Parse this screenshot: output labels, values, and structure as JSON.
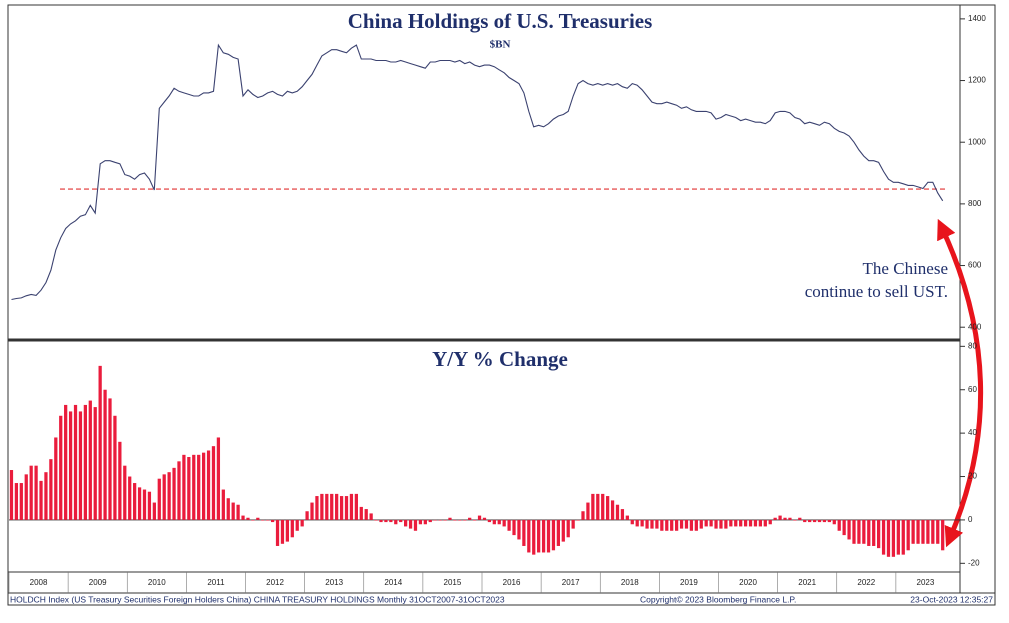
{
  "chart_data": [
    {
      "type": "line",
      "title": "China Holdings of U.S. Treasuries",
      "subtitle": "$BN",
      "annotation": [
        "The Chinese",
        "continue to sell UST."
      ],
      "color": "#3b4270",
      "values": [
        490,
        493,
        495,
        502,
        506,
        503,
        520,
        545,
        585,
        650,
        690,
        720,
        735,
        745,
        760,
        765,
        795,
        770,
        930,
        940,
        940,
        935,
        930,
        895,
        890,
        880,
        895,
        900,
        880,
        845,
        1110,
        1130,
        1150,
        1175,
        1165,
        1160,
        1155,
        1150,
        1150,
        1160,
        1160,
        1165,
        1315,
        1290,
        1285,
        1275,
        1270,
        1150,
        1170,
        1155,
        1145,
        1150,
        1160,
        1165,
        1155,
        1150,
        1165,
        1160,
        1165,
        1180,
        1200,
        1220,
        1250,
        1280,
        1290,
        1300,
        1300,
        1295,
        1290,
        1305,
        1315,
        1270,
        1270,
        1270,
        1265,
        1265,
        1265,
        1260,
        1260,
        1265,
        1260,
        1255,
        1250,
        1245,
        1240,
        1260,
        1260,
        1265,
        1265,
        1265,
        1260,
        1265,
        1255,
        1260,
        1250,
        1245,
        1250,
        1250,
        1245,
        1235,
        1225,
        1210,
        1200,
        1190,
        1160,
        1100,
        1050,
        1055,
        1050,
        1060,
        1075,
        1085,
        1090,
        1100,
        1150,
        1190,
        1200,
        1190,
        1185,
        1190,
        1185,
        1190,
        1185,
        1190,
        1180,
        1175,
        1190,
        1185,
        1170,
        1150,
        1130,
        1125,
        1125,
        1130,
        1125,
        1120,
        1110,
        1115,
        1105,
        1100,
        1100,
        1100,
        1095,
        1075,
        1080,
        1090,
        1085,
        1080,
        1070,
        1075,
        1070,
        1065,
        1065,
        1060,
        1070,
        1095,
        1100,
        1100,
        1095,
        1080,
        1075,
        1060,
        1065,
        1060,
        1055,
        1065,
        1060,
        1045,
        1035,
        1030,
        1020,
        1000,
        975,
        955,
        940,
        940,
        935,
        905,
        880,
        870,
        870,
        865,
        860,
        860,
        855,
        850,
        870,
        870,
        835,
        810
      ],
      "reference_line": {
        "value": 848,
        "color": "#e03030"
      },
      "ylim": [
        365,
        1445
      ],
      "yticks": [
        400,
        600,
        800,
        1000,
        1200,
        1400
      ]
    },
    {
      "type": "bar",
      "title": "Y/Y % Change",
      "color": "#ea1c3c",
      "categories": [
        null,
        null,
        null,
        null,
        null,
        "2008",
        null,
        null,
        null,
        null,
        null,
        null,
        null,
        null,
        null,
        null,
        null,
        "2009",
        null,
        null,
        null,
        null,
        null,
        null,
        null,
        null,
        null,
        null,
        null,
        "2010",
        null,
        null,
        null,
        null,
        null,
        null,
        null,
        null,
        null,
        null,
        null,
        "2011",
        null,
        null,
        null,
        null,
        null,
        null,
        null,
        null,
        null,
        null,
        null,
        "2012",
        null,
        null,
        null,
        null,
        null,
        null,
        null,
        null,
        null,
        null,
        null,
        "2013",
        null,
        null,
        null,
        null,
        null,
        null,
        null,
        null,
        null,
        null,
        null,
        "2014",
        null,
        null,
        null,
        null,
        null,
        null,
        null,
        null,
        null,
        null,
        null,
        "2015",
        null,
        null,
        null,
        null,
        null,
        null,
        null,
        null,
        null,
        null,
        null,
        "2016",
        null,
        null,
        null,
        null,
        null,
        null,
        null,
        null,
        null,
        null,
        null,
        "2017",
        null,
        null,
        null,
        null,
        null,
        null,
        null,
        null,
        null,
        null,
        null,
        "2018",
        null,
        null,
        null,
        null,
        null,
        null,
        null,
        null,
        null,
        null,
        null,
        "2019",
        null,
        null,
        null,
        null,
        null,
        null,
        null,
        null,
        null,
        null,
        null,
        "2020",
        null,
        null,
        null,
        null,
        null,
        null,
        null,
        null,
        null,
        null,
        null,
        "2021",
        null,
        null,
        null,
        null,
        null,
        null,
        null,
        null,
        null,
        null,
        null,
        "2022",
        null,
        null,
        null,
        null,
        null,
        null,
        null,
        null,
        null,
        null,
        null,
        "2023",
        null,
        null,
        null,
        null
      ],
      "values": [
        23,
        17,
        17,
        21,
        25,
        25,
        18,
        22,
        28,
        38,
        48,
        53,
        50,
        53,
        50,
        53,
        55,
        52,
        71,
        60,
        56,
        48,
        36,
        25,
        20,
        17,
        15,
        14,
        13,
        8,
        19,
        21,
        22,
        24,
        27,
        30,
        29,
        30,
        30,
        31,
        32,
        34,
        38,
        14,
        10,
        8,
        7,
        2,
        1,
        0,
        1,
        0,
        0,
        -1,
        -12,
        -11,
        -10,
        -8,
        -5,
        -3,
        4,
        8,
        11,
        12,
        12,
        12,
        12,
        11,
        11,
        12,
        12,
        6,
        5,
        3,
        0,
        -1,
        -1,
        -1,
        -2,
        -1,
        -3,
        -4,
        -5,
        -2,
        -2,
        -1,
        0,
        0,
        0,
        1,
        0,
        0,
        0,
        1,
        0,
        2,
        1,
        -1,
        -2,
        -2,
        -3,
        -5,
        -7,
        -9,
        -12,
        -15,
        -16,
        -15,
        -15,
        -15,
        -14,
        -12,
        -10,
        -8,
        -4,
        0,
        4,
        8,
        12,
        12,
        12,
        11,
        9,
        7,
        5,
        2,
        -2,
        -3,
        -3,
        -4,
        -4,
        -4,
        -5,
        -5,
        -5,
        -5,
        -4,
        -4,
        -5,
        -5,
        -4,
        -3,
        -3,
        -4,
        -4,
        -4,
        -3,
        -3,
        -3,
        -3,
        -3,
        -3,
        -3,
        -3,
        -2,
        1,
        2,
        1,
        1,
        0,
        1,
        -1,
        -1,
        -1,
        -1,
        -1,
        -1,
        -2,
        -5,
        -7,
        -9,
        -11,
        -11,
        -11,
        -12,
        -12,
        -13,
        -16,
        -17,
        -17,
        -16,
        -16,
        -14,
        -11,
        -11,
        -11,
        -11,
        -11,
        -11,
        -14
      ],
      "ylim": [
        -24,
        82
      ],
      "yticks": [
        -20,
        0,
        20,
        40,
        60,
        80
      ]
    }
  ],
  "footer": {
    "source": "HOLDCH Index (US Treasury Securities Foreign Holders China) CHINA TREASURY HOLDINGS  Monthly 31OCT2007-31OCT2023",
    "copyright": "Copyright© 2023 Bloomberg Finance L.P.",
    "timestamp": "23-Oct-2023 12:35:27"
  }
}
